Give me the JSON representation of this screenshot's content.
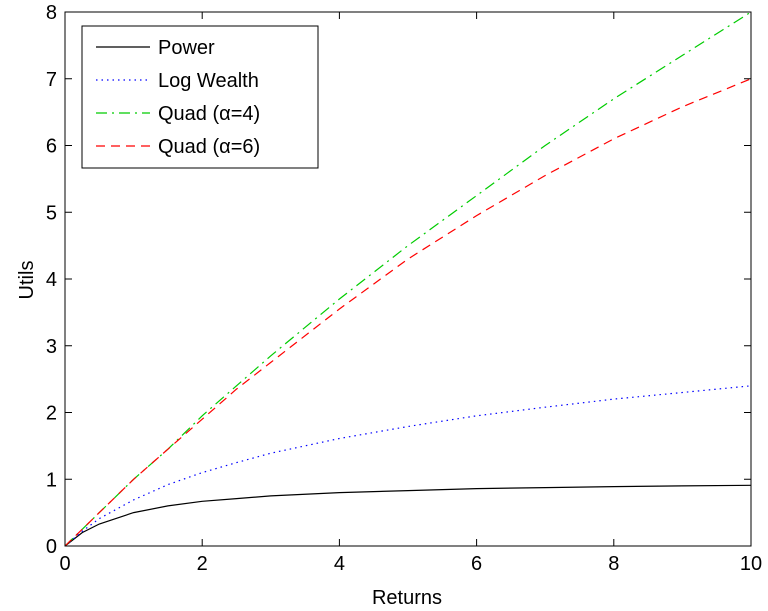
{
  "chart_data": {
    "type": "line",
    "xlabel": "Returns",
    "ylabel": "Utils",
    "xlim": [
      0,
      10
    ],
    "ylim": [
      0,
      8
    ],
    "xticks": [
      0,
      2,
      4,
      6,
      8,
      10
    ],
    "yticks": [
      0,
      1,
      2,
      3,
      4,
      5,
      6,
      7,
      8
    ],
    "xtick_labels": [
      "0",
      "2",
      "4",
      "6",
      "8",
      "10"
    ],
    "ytick_labels": [
      "0",
      "1",
      "2",
      "3",
      "4",
      "5",
      "6",
      "7",
      "8"
    ],
    "grid": false,
    "legend_position": "top-left",
    "x": [
      0,
      0.25,
      0.5,
      1,
      1.5,
      2,
      2.5,
      3,
      4,
      5,
      6,
      7,
      8,
      9,
      10
    ],
    "series": [
      {
        "name": "Power",
        "color": "#000000",
        "line_style": "solid",
        "values": [
          0,
          0.2,
          0.33,
          0.5,
          0.6,
          0.67,
          0.71,
          0.75,
          0.8,
          0.83,
          0.86,
          0.875,
          0.89,
          0.9,
          0.91
        ]
      },
      {
        "name": "Log Wealth",
        "color": "#0000ff",
        "line_style": "dotted",
        "values": [
          0,
          0.22,
          0.41,
          0.69,
          0.92,
          1.1,
          1.25,
          1.39,
          1.61,
          1.79,
          1.95,
          2.08,
          2.2,
          2.3,
          2.4
        ]
      },
      {
        "name": "Quad (α=4)",
        "color": "#00cc00",
        "line_style": "dashdot",
        "values": [
          0,
          0.25,
          0.5,
          1.0,
          1.45,
          1.95,
          2.4,
          2.85,
          3.7,
          4.5,
          5.25,
          6.0,
          6.7,
          7.35,
          8.0
        ]
      },
      {
        "name": "Quad (α=6)",
        "color": "#ff0000",
        "line_style": "dashed",
        "values": [
          0,
          0.25,
          0.5,
          1.0,
          1.45,
          1.9,
          2.35,
          2.75,
          3.55,
          4.3,
          4.95,
          5.55,
          6.1,
          6.58,
          7.0
        ]
      }
    ]
  }
}
